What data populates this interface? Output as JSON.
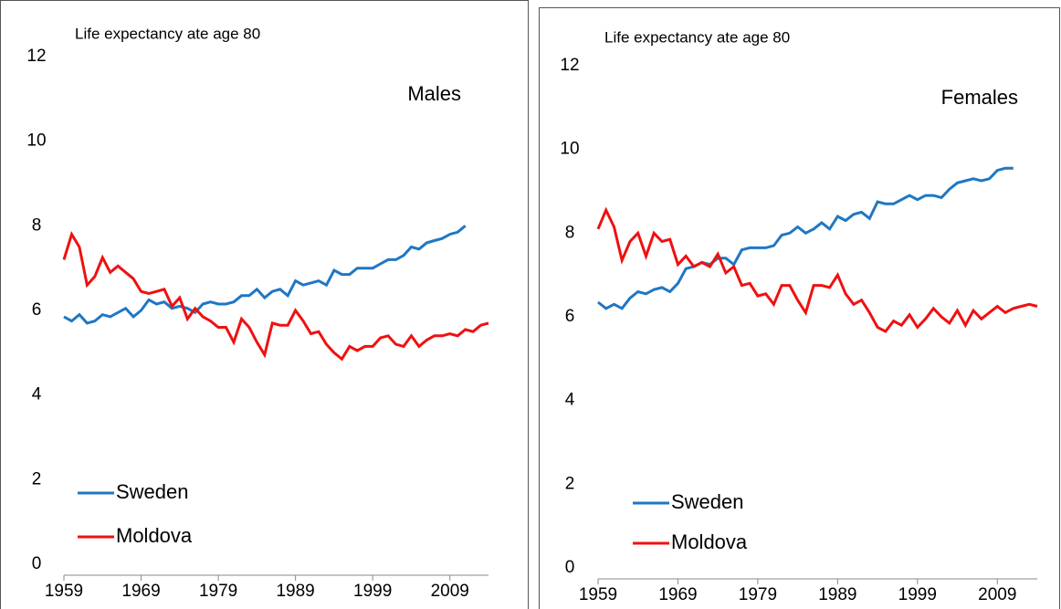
{
  "chart_data": [
    {
      "type": "line",
      "title": "Life expectancy ate age 80",
      "annotation": "Males",
      "x": [
        1959,
        1960,
        1961,
        1962,
        1963,
        1964,
        1965,
        1966,
        1967,
        1968,
        1969,
        1970,
        1971,
        1972,
        1973,
        1974,
        1975,
        1976,
        1977,
        1978,
        1979,
        1980,
        1981,
        1982,
        1983,
        1984,
        1985,
        1986,
        1987,
        1988,
        1989,
        1990,
        1991,
        1992,
        1993,
        1994,
        1995,
        1996,
        1997,
        1998,
        1999,
        2000,
        2001,
        2002,
        2003,
        2004,
        2005,
        2006,
        2007,
        2008,
        2009,
        2010,
        2011,
        2012,
        2013,
        2014
      ],
      "series": [
        {
          "name": "Sweden",
          "color": "#1f77c4",
          "values": [
            5.85,
            5.75,
            5.9,
            5.7,
            5.75,
            5.9,
            5.85,
            5.95,
            6.05,
            5.85,
            6.0,
            6.25,
            6.15,
            6.2,
            6.05,
            6.1,
            6.05,
            5.95,
            6.15,
            6.2,
            6.15,
            6.15,
            6.2,
            6.35,
            6.35,
            6.5,
            6.3,
            6.45,
            6.5,
            6.35,
            6.7,
            6.6,
            6.65,
            6.7,
            6.6,
            6.95,
            6.85,
            6.85,
            7.0,
            7.0,
            7.0,
            7.1,
            7.2,
            7.2,
            7.3,
            7.5,
            7.45,
            7.6,
            7.65,
            7.7,
            7.8,
            7.85,
            8.0,
            null,
            null,
            null
          ]
        },
        {
          "name": "Moldova",
          "color": "#f01010",
          "values": [
            7.2,
            7.8,
            7.5,
            6.6,
            6.8,
            7.25,
            6.9,
            7.05,
            6.9,
            6.75,
            6.45,
            6.4,
            6.45,
            6.5,
            6.1,
            6.3,
            5.8,
            6.05,
            5.85,
            5.75,
            5.6,
            5.6,
            5.25,
            5.8,
            5.6,
            5.25,
            4.95,
            5.7,
            5.65,
            5.65,
            6.0,
            5.75,
            5.45,
            5.5,
            5.2,
            5.0,
            4.85,
            5.15,
            5.05,
            5.15,
            5.15,
            5.35,
            5.4,
            5.2,
            5.15,
            5.4,
            5.15,
            5.3,
            5.4,
            5.4,
            5.45,
            5.4,
            5.55,
            5.5,
            5.65,
            5.7
          ]
        }
      ],
      "xlim": [
        1959,
        2014
      ],
      "xticks": [
        1959,
        1969,
        1979,
        1989,
        1999,
        2009
      ],
      "ylim": [
        0,
        12
      ],
      "yticks": [
        0,
        2,
        4,
        6,
        8,
        10,
        12
      ],
      "legend": "lower left"
    },
    {
      "type": "line",
      "title": "Life expectancy ate age 80",
      "annotation": "Females",
      "x": [
        1959,
        1960,
        1961,
        1962,
        1963,
        1964,
        1965,
        1966,
        1967,
        1968,
        1969,
        1970,
        1971,
        1972,
        1973,
        1974,
        1975,
        1976,
        1977,
        1978,
        1979,
        1980,
        1981,
        1982,
        1983,
        1984,
        1985,
        1986,
        1987,
        1988,
        1989,
        1990,
        1991,
        1992,
        1993,
        1994,
        1995,
        1996,
        1997,
        1998,
        1999,
        2000,
        2001,
        2002,
        2003,
        2004,
        2005,
        2006,
        2007,
        2008,
        2009,
        2010,
        2011,
        2012,
        2013,
        2014
      ],
      "series": [
        {
          "name": "Sweden",
          "color": "#1f77c4",
          "values": [
            6.35,
            6.2,
            6.3,
            6.2,
            6.45,
            6.6,
            6.55,
            6.65,
            6.7,
            6.6,
            6.8,
            7.15,
            7.2,
            7.3,
            7.25,
            7.4,
            7.4,
            7.25,
            7.6,
            7.65,
            7.65,
            7.65,
            7.7,
            7.95,
            8.0,
            8.15,
            8.0,
            8.1,
            8.25,
            8.1,
            8.4,
            8.3,
            8.45,
            8.5,
            8.35,
            8.75,
            8.7,
            8.7,
            8.8,
            8.9,
            8.8,
            8.9,
            8.9,
            8.85,
            9.05,
            9.2,
            9.25,
            9.3,
            9.25,
            9.3,
            9.5,
            9.55,
            9.55,
            null,
            null,
            null
          ]
        },
        {
          "name": "Moldova",
          "color": "#f01010",
          "values": [
            8.1,
            8.55,
            8.15,
            7.35,
            7.8,
            8.0,
            7.45,
            8.0,
            7.8,
            7.85,
            7.25,
            7.45,
            7.2,
            7.3,
            7.2,
            7.5,
            7.05,
            7.2,
            6.75,
            6.8,
            6.5,
            6.55,
            6.3,
            6.75,
            6.75,
            6.4,
            6.1,
            6.75,
            6.75,
            6.7,
            7.0,
            6.55,
            6.3,
            6.4,
            6.1,
            5.75,
            5.65,
            5.9,
            5.8,
            6.05,
            5.75,
            5.95,
            6.2,
            6.0,
            5.85,
            6.15,
            5.8,
            6.15,
            5.95,
            6.1,
            6.25,
            6.1,
            6.2,
            6.25,
            6.3,
            6.25
          ]
        }
      ],
      "xlim": [
        1959,
        2014
      ],
      "xticks": [
        1959,
        1969,
        1979,
        1989,
        1999,
        2009
      ],
      "ylim": [
        0,
        12
      ],
      "yticks": [
        0,
        2,
        4,
        6,
        8,
        10,
        12
      ],
      "legend": "lower left"
    }
  ]
}
